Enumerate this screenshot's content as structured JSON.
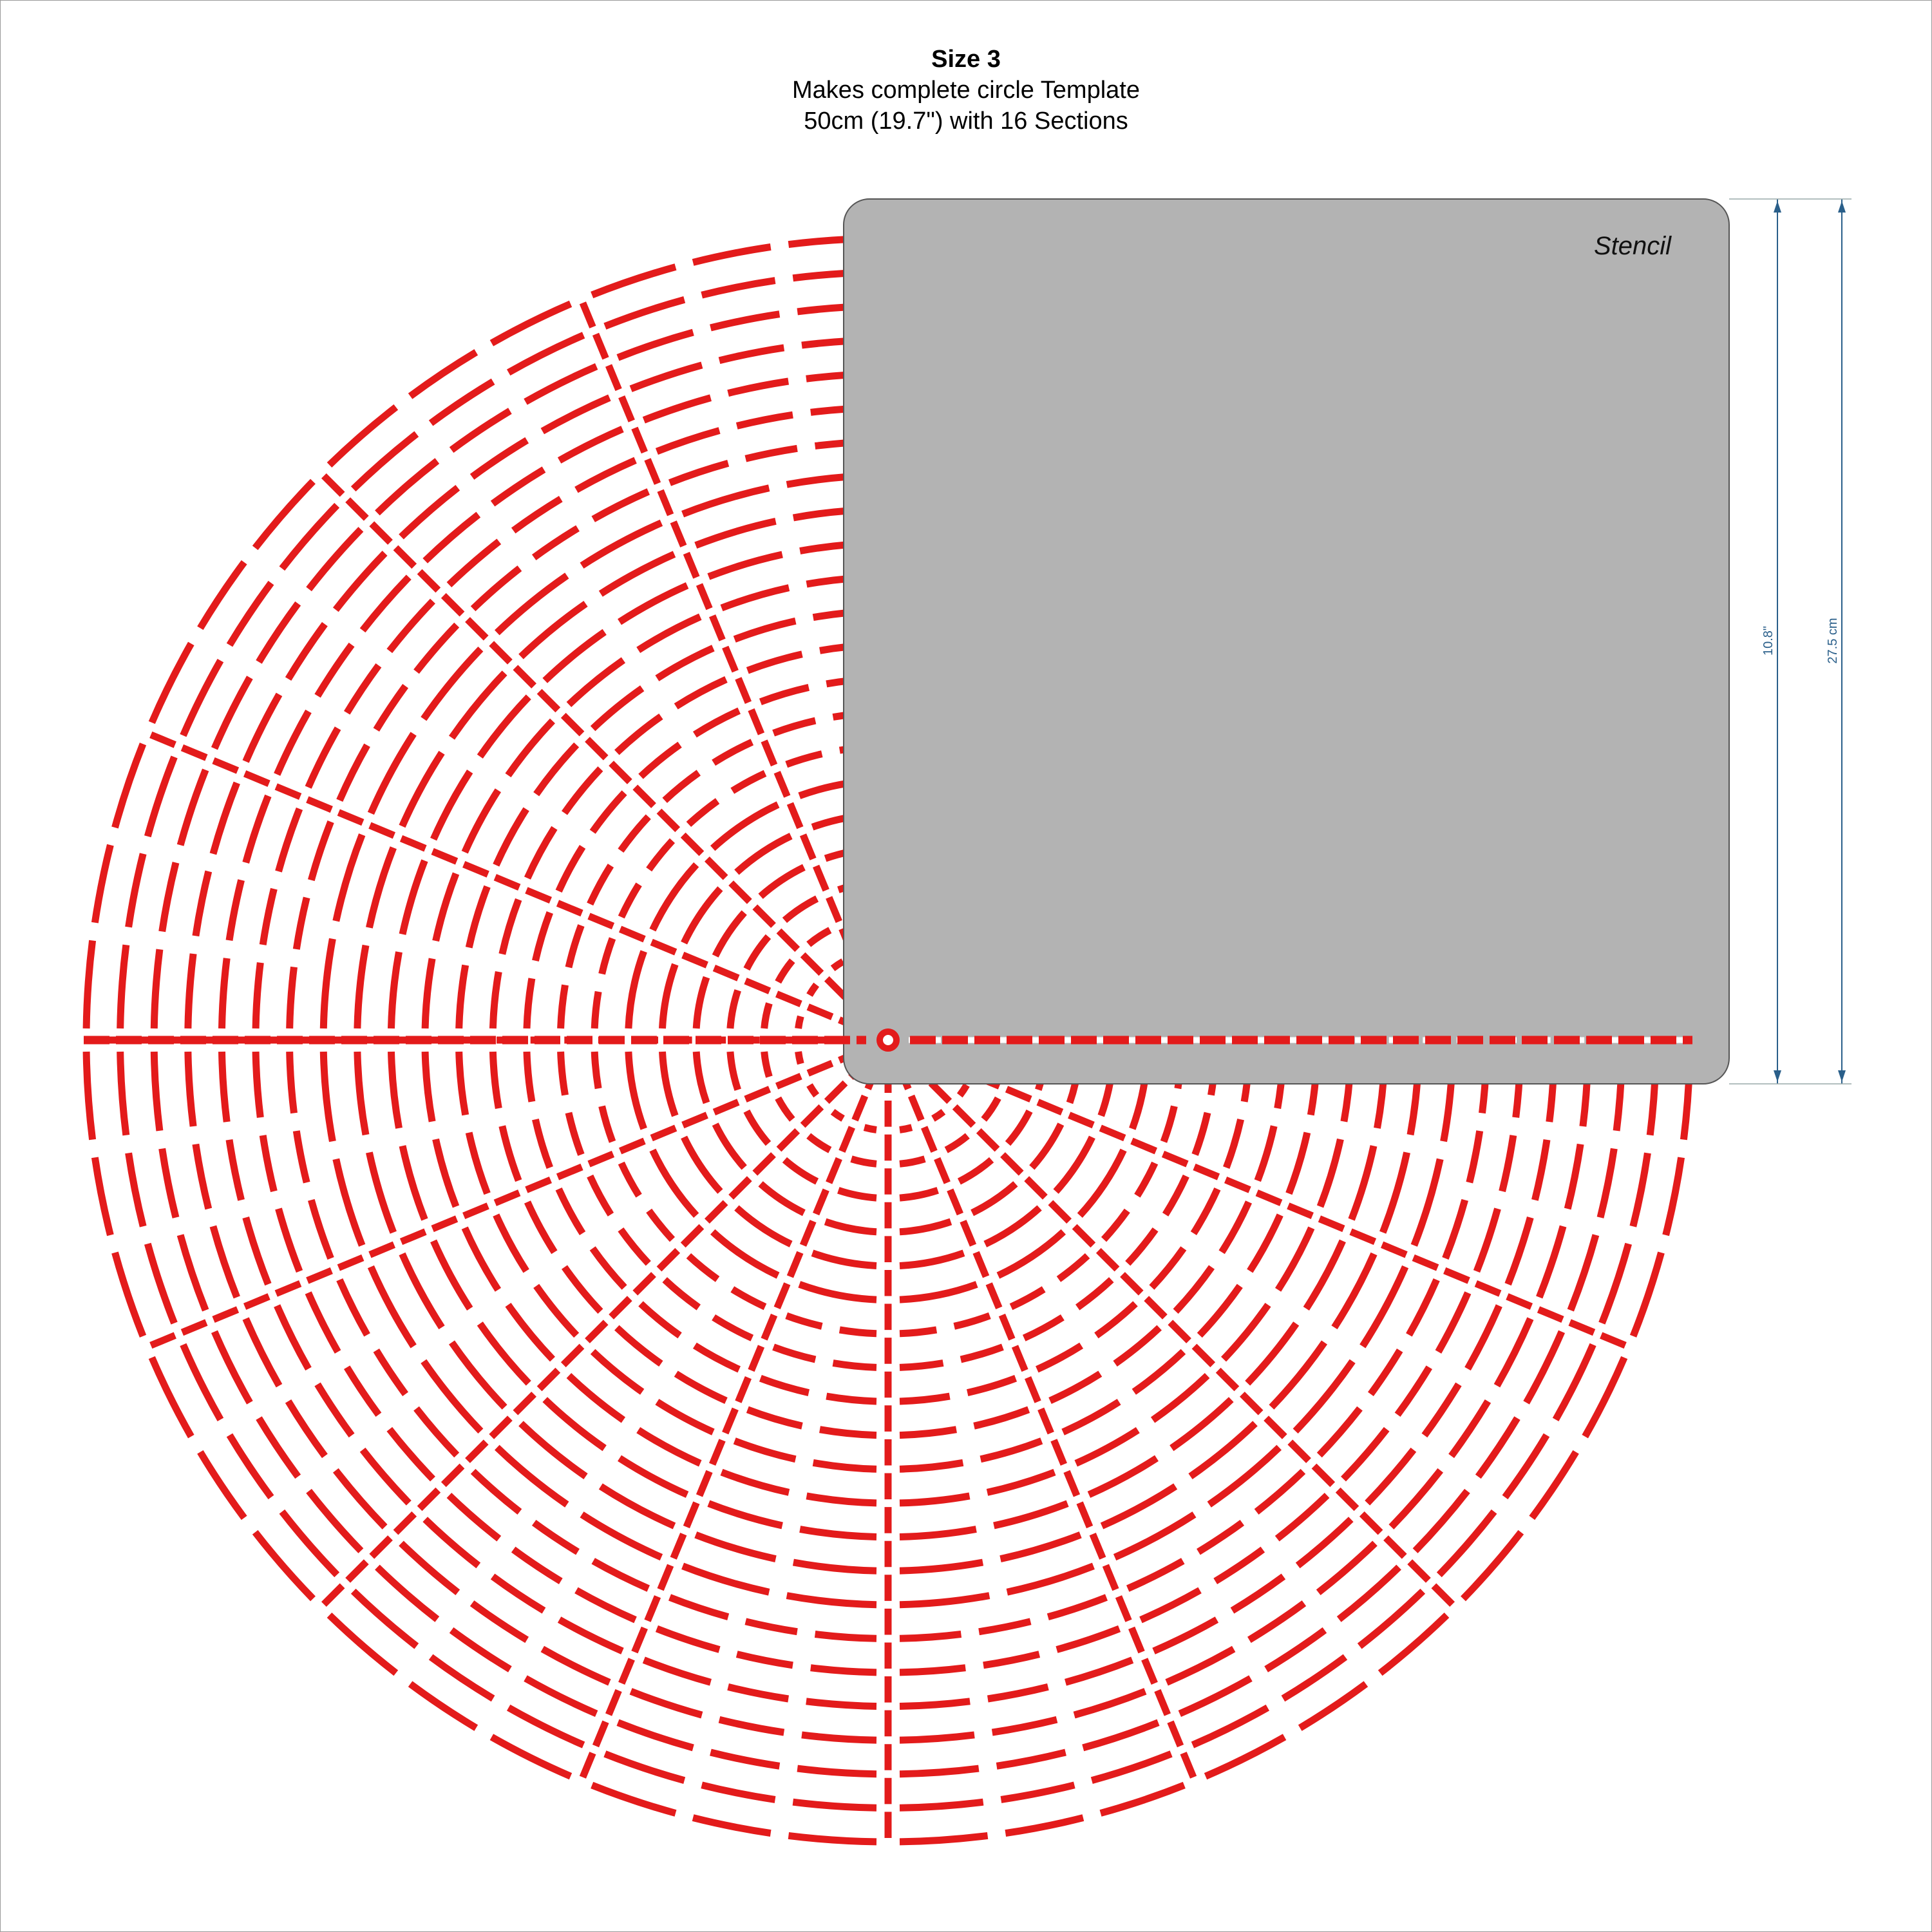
{
  "header": {
    "title": "Size 3",
    "line1": "Makes complete circle Template",
    "line2": "50cm (19.7\") with 16 Sections"
  },
  "stencil": {
    "label": "Stencil"
  },
  "dimensions": {
    "inches": "10.8\"",
    "cm": "27.5 cm"
  },
  "template": {
    "sections": 16,
    "rings": 23
  },
  "colors": {
    "pattern": "#e31b1b",
    "stencil_fill": "#b3b3b3",
    "stencil_lines": "#ffffff",
    "dimension": "#2a5f8a"
  }
}
